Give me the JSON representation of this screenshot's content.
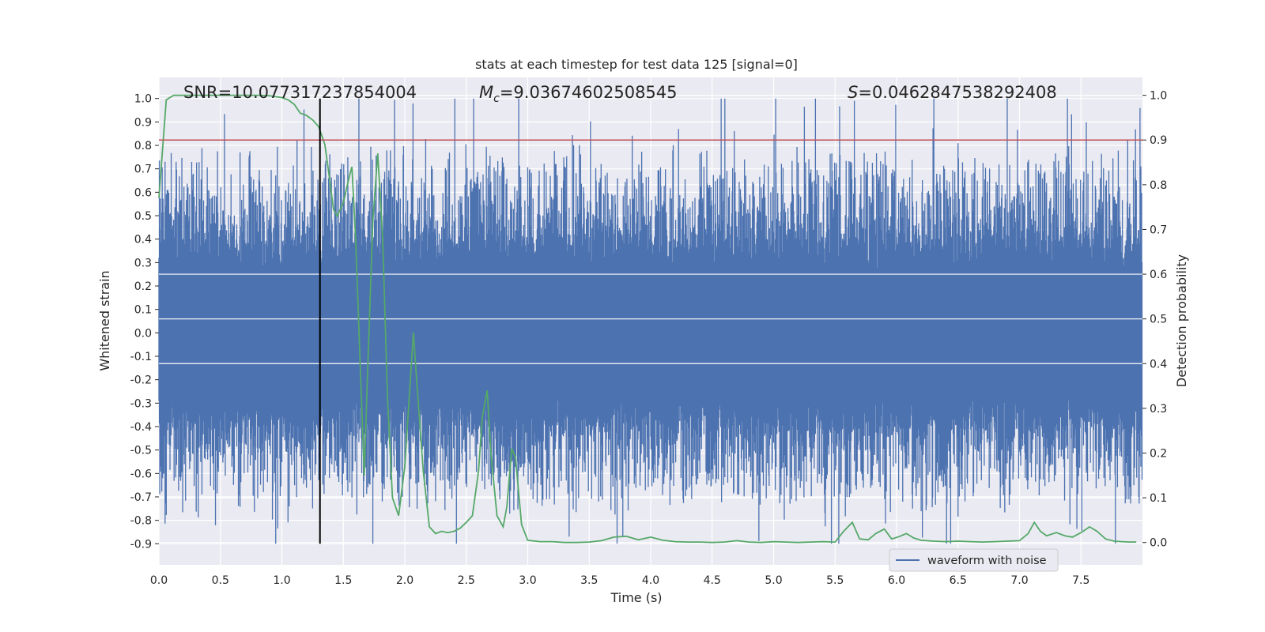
{
  "chart_data": {
    "type": "line",
    "title": "stats at each timestep for test data 125 [signal=0]",
    "xlabel": "Time (s)",
    "ylabel_left": "Whitened strain",
    "ylabel_right": "Detection probability",
    "xlim": [
      0.0,
      8.0
    ],
    "ylim_left": [
      -0.99,
      1.09
    ],
    "ylim_right": [
      -0.05,
      1.04
    ],
    "x_ticks": [
      "0.0",
      "0.5",
      "1.0",
      "1.5",
      "2.0",
      "2.5",
      "3.0",
      "3.5",
      "4.0",
      "4.5",
      "5.0",
      "5.5",
      "6.0",
      "6.5",
      "7.0",
      "7.5"
    ],
    "y_left_ticks": [
      "1.0",
      "0.9",
      "0.8",
      "0.7",
      "0.6",
      "0.5",
      "0.4",
      "0.3",
      "0.2",
      "0.1",
      "0.0",
      "-0.1",
      "-0.2",
      "-0.3",
      "-0.4",
      "-0.5",
      "-0.6",
      "-0.7",
      "-0.8",
      "-0.9"
    ],
    "y_right_ticks": [
      "1.0",
      "0.9",
      "0.8",
      "0.7",
      "0.6",
      "0.5",
      "0.4",
      "0.3",
      "0.2",
      "0.1",
      "0.0"
    ],
    "grid": true,
    "legend": {
      "position": "lower-right",
      "entries": [
        "waveform with noise"
      ]
    },
    "annotations": {
      "snr": "SNR=10.077317237854004",
      "mc_symbol": "M",
      "mc_sub": "c",
      "mc_value": "=9.03674602508545",
      "s_symbol": "S",
      "s_value": "=0.0462847538292408"
    },
    "vertical_line": {
      "x": 1.31,
      "ymin": -0.9,
      "ymax": 1.0
    },
    "threshold_line": {
      "axis": "right",
      "y": 0.9
    },
    "series": [
      {
        "name": "waveform with noise",
        "axis": "left",
        "style": "noise",
        "color": "#4c72b0",
        "core_amplitude": 0.27,
        "peak_spread": 0.14,
        "duration_s": 8.0
      },
      {
        "axis": "right",
        "color": "#55a868",
        "x": [
          0.0,
          0.06,
          0.12,
          0.2,
          0.3,
          0.4,
          0.5,
          0.6,
          0.7,
          0.8,
          0.9,
          1.0,
          1.05,
          1.1,
          1.15,
          1.2,
          1.25,
          1.3,
          1.35,
          1.38,
          1.42,
          1.45,
          1.5,
          1.55,
          1.57,
          1.6,
          1.63,
          1.67,
          1.7,
          1.74,
          1.78,
          1.82,
          1.86,
          1.9,
          1.95,
          2.0,
          2.03,
          2.07,
          2.1,
          2.15,
          2.2,
          2.25,
          2.3,
          2.35,
          2.4,
          2.45,
          2.5,
          2.55,
          2.6,
          2.63,
          2.67,
          2.7,
          2.75,
          2.8,
          2.83,
          2.87,
          2.9,
          2.95,
          3.0,
          3.1,
          3.2,
          3.3,
          3.4,
          3.5,
          3.6,
          3.7,
          3.8,
          3.9,
          4.0,
          4.1,
          4.2,
          4.3,
          4.4,
          4.5,
          4.6,
          4.7,
          4.8,
          4.9,
          5.0,
          5.1,
          5.2,
          5.3,
          5.4,
          5.5,
          5.57,
          5.64,
          5.7,
          5.77,
          5.83,
          5.9,
          5.96,
          6.02,
          6.08,
          6.14,
          6.2,
          6.3,
          6.4,
          6.5,
          6.6,
          6.7,
          6.8,
          6.9,
          7.0,
          7.07,
          7.12,
          7.17,
          7.22,
          7.3,
          7.37,
          7.43,
          7.5,
          7.57,
          7.63,
          7.7,
          7.77,
          7.83,
          7.9,
          7.95
        ],
        "y": [
          0.77,
          0.99,
          1.0,
          1.0,
          1.0,
          1.0,
          1.0,
          1.0,
          1.0,
          1.0,
          0.999,
          0.995,
          0.99,
          0.98,
          0.96,
          0.955,
          0.945,
          0.93,
          0.89,
          0.83,
          0.745,
          0.73,
          0.76,
          0.82,
          0.84,
          0.68,
          0.45,
          0.15,
          0.4,
          0.72,
          0.87,
          0.68,
          0.32,
          0.1,
          0.06,
          0.17,
          0.3,
          0.47,
          0.35,
          0.16,
          0.035,
          0.02,
          0.025,
          0.022,
          0.025,
          0.032,
          0.045,
          0.06,
          0.16,
          0.28,
          0.34,
          0.2,
          0.06,
          0.035,
          0.08,
          0.21,
          0.19,
          0.04,
          0.005,
          0.002,
          0.002,
          0.0,
          0.0,
          0.001,
          0.004,
          0.012,
          0.014,
          0.006,
          0.012,
          0.005,
          0.002,
          0.001,
          0.001,
          0.0,
          0.001,
          0.004,
          0.001,
          0.0,
          0.002,
          0.001,
          0.0,
          0.001,
          0.002,
          0.001,
          0.025,
          0.045,
          0.008,
          0.006,
          0.02,
          0.03,
          0.008,
          0.013,
          0.02,
          0.01,
          0.005,
          0.003,
          0.002,
          0.003,
          0.002,
          0.001,
          0.002,
          0.003,
          0.004,
          0.02,
          0.045,
          0.025,
          0.015,
          0.022,
          0.015,
          0.012,
          0.022,
          0.035,
          0.025,
          0.008,
          0.003,
          0.002,
          0.001,
          0.001
        ]
      }
    ]
  },
  "colors": {
    "plot_background": "#eaeaf2",
    "grid": "#ffffff",
    "waveform": "#4c72b0",
    "probability": "#55a868",
    "threshold": "#c44e52",
    "marker_line": "#000000"
  }
}
